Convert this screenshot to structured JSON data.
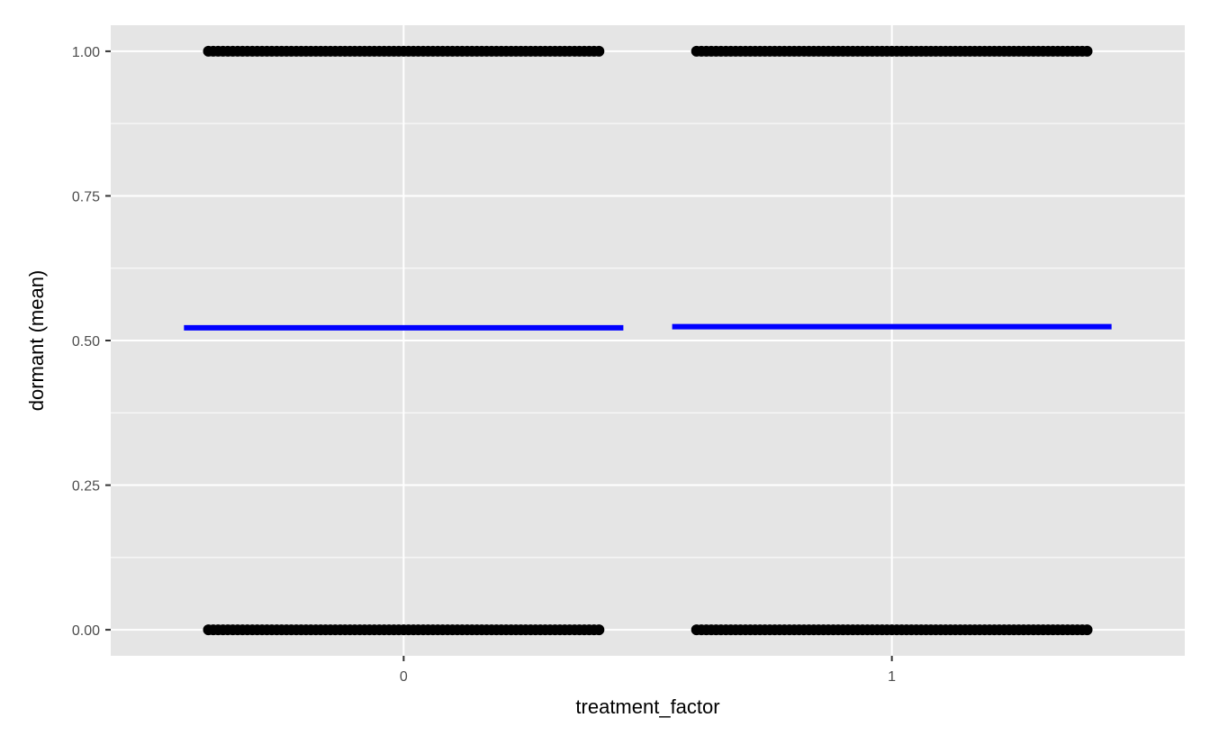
{
  "chart_data": {
    "type": "scatter",
    "title": "",
    "xlabel": "treatment_factor",
    "ylabel": "dormant (mean)",
    "categories": [
      "0",
      "1"
    ],
    "ylim": [
      -0.045,
      1.045
    ],
    "yticks": [
      0,
      0.25,
      0.5,
      0.75,
      1
    ],
    "ytick_labels": [
      "0.00",
      "0.25",
      "0.50",
      "0.75",
      "1.00"
    ],
    "grid": true,
    "jitter_width": 0.4,
    "points": [
      {
        "category": "0",
        "y_values": [
          0,
          1
        ]
      },
      {
        "category": "1",
        "y_values": [
          0,
          1
        ]
      }
    ],
    "mean_lines": [
      {
        "category": "0",
        "y": 0.522,
        "width": 0.9
      },
      {
        "category": "1",
        "y": 0.524,
        "width": 0.9
      }
    ],
    "colors": {
      "panel": "#e5e5e5",
      "grid": "#ffffff",
      "points": "#000000",
      "mean_line": "#0000ff"
    }
  }
}
